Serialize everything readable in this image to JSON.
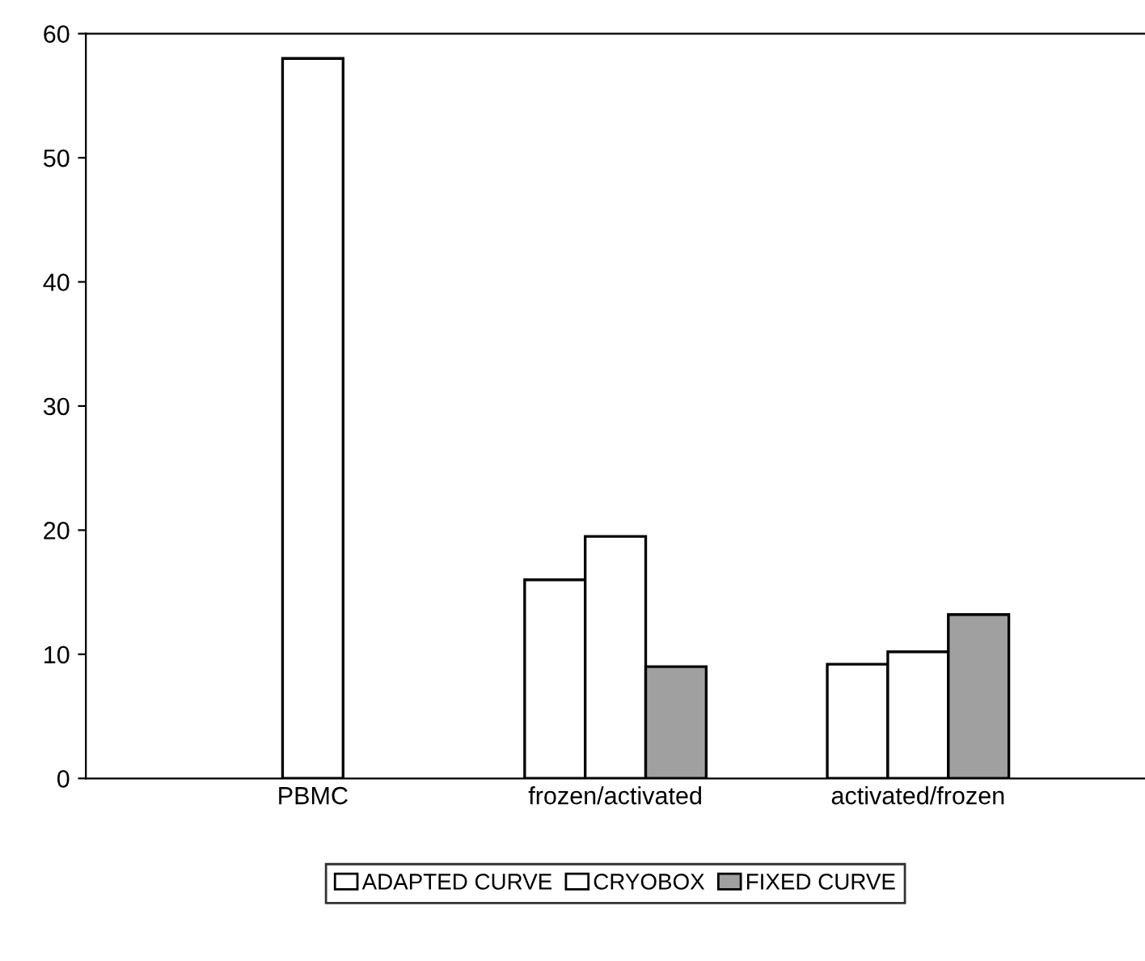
{
  "chart_data": {
    "type": "bar",
    "categories": [
      "PBMC",
      "frozen/activated",
      "activated/frozen"
    ],
    "series": [
      {
        "name": "ADAPTED CURVE",
        "color": "#ffffff",
        "values": [
          null,
          16,
          9.2
        ]
      },
      {
        "name": "CRYOBOX",
        "color": "#ffffff",
        "values": [
          58,
          19.5,
          10.2
        ]
      },
      {
        "name": "FIXED CURVE",
        "color": "#a0a0a0",
        "values": [
          null,
          9,
          13.2
        ]
      }
    ],
    "ylim": [
      0,
      60
    ],
    "yticks": [
      0,
      10,
      20,
      30,
      40,
      50,
      60
    ],
    "grid": false,
    "legend": "bottom"
  }
}
